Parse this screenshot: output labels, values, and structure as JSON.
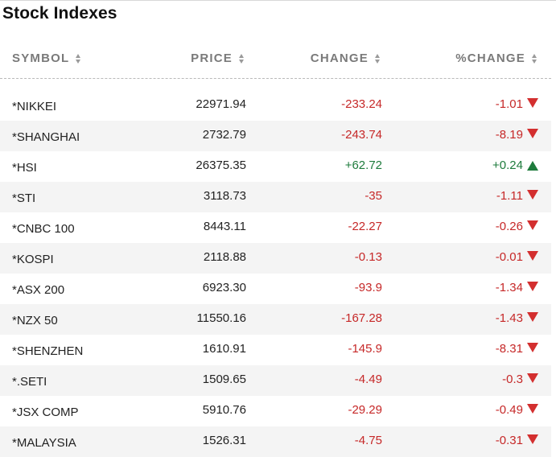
{
  "title": "Stock Indexes",
  "columns": {
    "symbol": "SYMBOL",
    "price": "PRICE",
    "change": "CHANGE",
    "pct_change": "%CHANGE"
  },
  "colors": {
    "negative": "#c62828",
    "positive": "#1e7b3c",
    "row_alt_bg": "#f4f4f4"
  },
  "rows": [
    {
      "symbol": "*NIKKEI",
      "price": "22971.94",
      "change": "-233.24",
      "pct_change": "-1.01",
      "direction": "down"
    },
    {
      "symbol": "*SHANGHAI",
      "price": "2732.79",
      "change": "-243.74",
      "pct_change": "-8.19",
      "direction": "down"
    },
    {
      "symbol": "*HSI",
      "price": "26375.35",
      "change": "+62.72",
      "pct_change": "+0.24",
      "direction": "up"
    },
    {
      "symbol": "*STI",
      "price": "3118.73",
      "change": "-35",
      "pct_change": "-1.11",
      "direction": "down"
    },
    {
      "symbol": "*CNBC 100",
      "price": "8443.11",
      "change": "-22.27",
      "pct_change": "-0.26",
      "direction": "down"
    },
    {
      "symbol": "*KOSPI",
      "price": "2118.88",
      "change": "-0.13",
      "pct_change": "-0.01",
      "direction": "down"
    },
    {
      "symbol": "*ASX 200",
      "price": "6923.30",
      "change": "-93.9",
      "pct_change": "-1.34",
      "direction": "down"
    },
    {
      "symbol": "*NZX 50",
      "price": "11550.16",
      "change": "-167.28",
      "pct_change": "-1.43",
      "direction": "down"
    },
    {
      "symbol": "*SHENZHEN",
      "price": "1610.91",
      "change": "-145.9",
      "pct_change": "-8.31",
      "direction": "down"
    },
    {
      "symbol": "*.SETI",
      "price": "1509.65",
      "change": "-4.49",
      "pct_change": "-0.3",
      "direction": "down"
    },
    {
      "symbol": "*JSX COMP",
      "price": "5910.76",
      "change": "-29.29",
      "pct_change": "-0.49",
      "direction": "down"
    },
    {
      "symbol": "*MALAYSIA",
      "price": "1526.31",
      "change": "-4.75",
      "pct_change": "-0.31",
      "direction": "down"
    }
  ]
}
